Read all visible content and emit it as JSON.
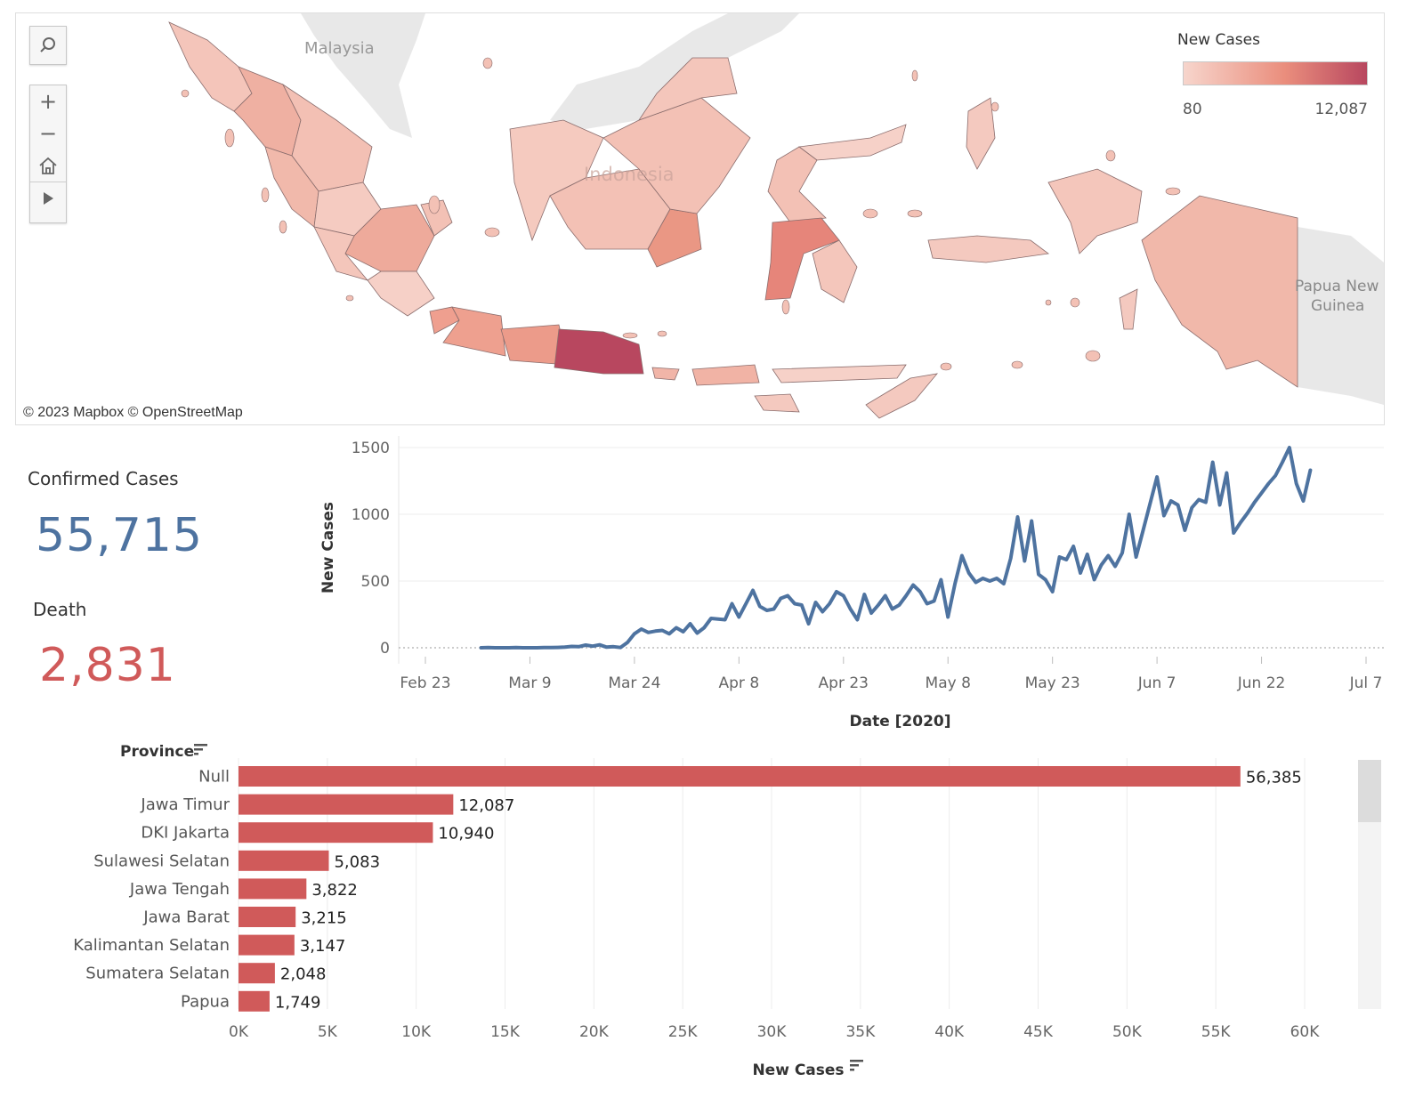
{
  "map": {
    "legend_title": "New Cases",
    "legend_min": "80",
    "legend_max": "12,087",
    "credit": "© 2023 Mapbox  © OpenStreetMap",
    "place_labels": [
      "Malaysia",
      "Indonesia",
      "Papua New",
      "Guinea"
    ],
    "colors": {
      "low": "#f7d5cc",
      "mid": "#ea8e7d",
      "high": "#b8475f",
      "land": "#e6e6e6"
    },
    "tools": [
      "search-icon",
      "zoom-in-icon",
      "zoom-out-icon",
      "home-icon",
      "play-icon"
    ]
  },
  "kpis": {
    "confirmed_label": "Confirmed Cases",
    "confirmed_value": "55,715",
    "confirmed_color": "#4e73a0",
    "death_label": "Death",
    "death_value": "2,831",
    "death_color": "#d05a5a"
  },
  "chart_data": [
    {
      "type": "line",
      "title": "",
      "xlabel": "Date [2020]",
      "ylabel": "New Cases",
      "x_ticks": [
        "Feb 23",
        "Mar 9",
        "Mar 24",
        "Apr 8",
        "Apr 23",
        "May 8",
        "May 23",
        "Jun 7",
        "Jun 22",
        "Jul 7"
      ],
      "y_ticks": [
        "0",
        "500",
        "1000",
        "1500"
      ],
      "ylim": [
        0,
        1500
      ],
      "x_range": [
        "2020-02-23",
        "2020-07-07"
      ],
      "color": "#4e73a0",
      "series": [
        {
          "x_start": "2020-03-02",
          "values": [
            0,
            2,
            0,
            0,
            0,
            1,
            0,
            0,
            0,
            1,
            1,
            3,
            5,
            10,
            8,
            20,
            12,
            22,
            5,
            8,
            2,
            40,
            105,
            140,
            115,
            125,
            130,
            105,
            150,
            120,
            180,
            110,
            150,
            220,
            215,
            210,
            330,
            230,
            330,
            430,
            310,
            280,
            290,
            370,
            390,
            330,
            320,
            180,
            340,
            270,
            330,
            420,
            390,
            290,
            210,
            400,
            260,
            320,
            390,
            290,
            320,
            390,
            470,
            420,
            330,
            350,
            510,
            230,
            480,
            690,
            560,
            490,
            520,
            500,
            520,
            480,
            670,
            980,
            650,
            950,
            550,
            510,
            420,
            680,
            660,
            760,
            560,
            700,
            510,
            620,
            690,
            610,
            710,
            1000,
            680,
            880,
            1080,
            1280,
            990,
            1100,
            1070,
            880,
            1050,
            1110,
            1090,
            1390,
            1070,
            1310,
            860,
            940,
            1010,
            1090,
            1160,
            1230,
            1290,
            1390,
            1500,
            1230,
            1100,
            1330
          ]
        }
      ]
    },
    {
      "type": "bar",
      "orientation": "horizontal",
      "category_label": "Province",
      "xlabel": "New Cases",
      "categories": [
        "Null",
        "Jawa Timur",
        "DKI Jakarta",
        "Sulawesi Selatan",
        "Jawa Tengah",
        "Jawa Barat",
        "Kalimantan Selatan",
        "Sumatera Selatan",
        "Papua"
      ],
      "values": [
        56385,
        12087,
        10940,
        5083,
        3822,
        3215,
        3147,
        2048,
        1749
      ],
      "value_labels": [
        "56,385",
        "12,087",
        "10,940",
        "5,083",
        "3,822",
        "3,215",
        "3,147",
        "2,048",
        "1,749"
      ],
      "x_ticks": [
        "0K",
        "5K",
        "10K",
        "15K",
        "20K",
        "25K",
        "30K",
        "35K",
        "40K",
        "45K",
        "50K",
        "55K",
        "60K"
      ],
      "xlim": [
        0,
        64000
      ],
      "color": "#d05a5a",
      "gridlines": true
    }
  ]
}
